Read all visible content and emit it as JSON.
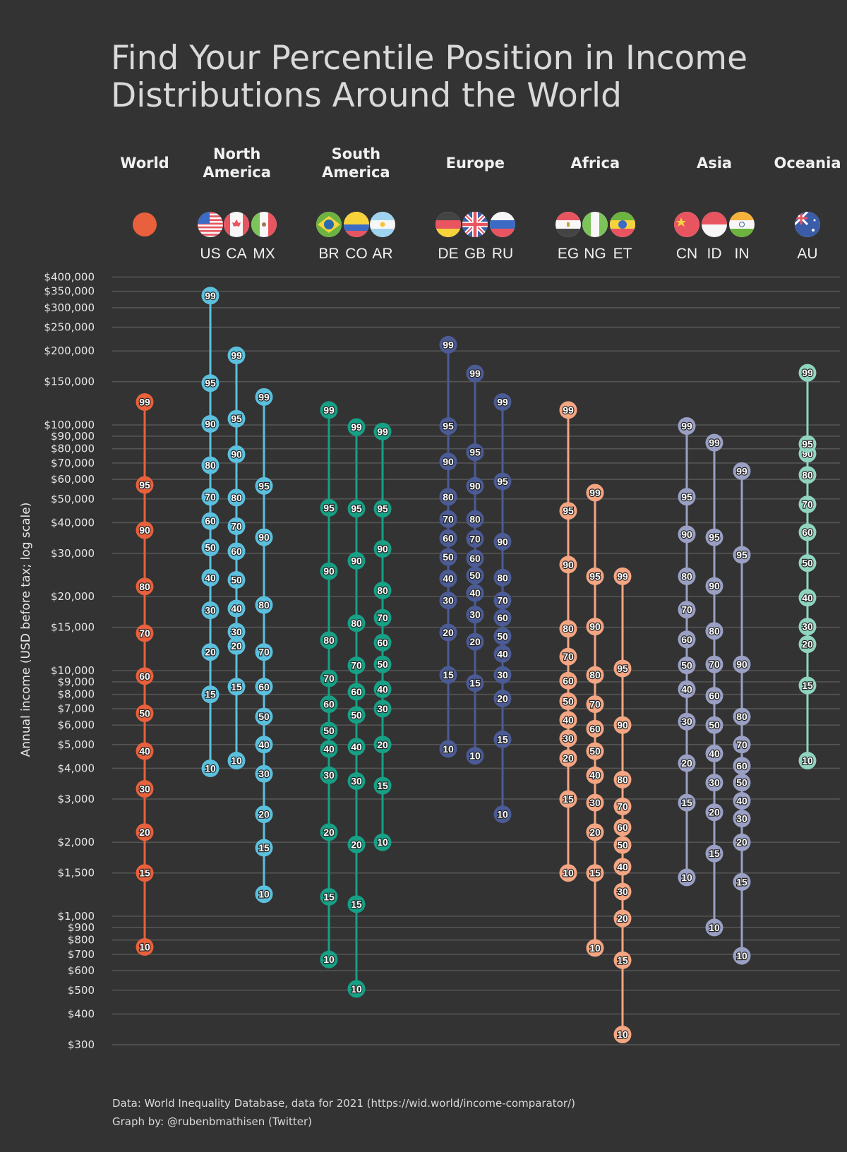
{
  "chart_data": {
    "type": "scatter",
    "title": "Find Your Percentile Position in Income Distributions Around the World",
    "title_lines": [
      "Find Your Percentile Position in Income",
      "Distributions Around the World"
    ],
    "ylabel": "Annual income (USD before tax; log scale)",
    "yscale": "log",
    "ylim": [
      300,
      400000
    ],
    "grid": true,
    "y_ticks": [
      {
        "value": 400000,
        "label": "$400,000"
      },
      {
        "value": 350000,
        "label": "$350,000"
      },
      {
        "value": 300000,
        "label": "$300,000"
      },
      {
        "value": 250000,
        "label": "$250,000"
      },
      {
        "value": 200000,
        "label": "$200,000"
      },
      {
        "value": 150000,
        "label": "$150,000"
      },
      {
        "value": 100000,
        "label": "$100,000"
      },
      {
        "value": 90000,
        "label": "$90,000"
      },
      {
        "value": 80000,
        "label": "$80,000"
      },
      {
        "value": 70000,
        "label": "$70,000"
      },
      {
        "value": 60000,
        "label": "$60,000"
      },
      {
        "value": 50000,
        "label": "$50,000"
      },
      {
        "value": 40000,
        "label": "$40,000"
      },
      {
        "value": 30000,
        "label": "$30,000"
      },
      {
        "value": 20000,
        "label": "$20,000"
      },
      {
        "value": 15000,
        "label": "$15,000"
      },
      {
        "value": 10000,
        "label": "$10,000"
      },
      {
        "value": 9000,
        "label": "$9,000"
      },
      {
        "value": 8000,
        "label": "$8,000"
      },
      {
        "value": 7000,
        "label": "$7,000"
      },
      {
        "value": 6000,
        "label": "$6,000"
      },
      {
        "value": 5000,
        "label": "$5,000"
      },
      {
        "value": 4000,
        "label": "$4,000"
      },
      {
        "value": 3000,
        "label": "$3,000"
      },
      {
        "value": 2000,
        "label": "$2,000"
      },
      {
        "value": 1500,
        "label": "$1,500"
      },
      {
        "value": 1000,
        "label": "$1,000"
      },
      {
        "value": 900,
        "label": "$900"
      },
      {
        "value": 800,
        "label": "$800"
      },
      {
        "value": 700,
        "label": "$700"
      },
      {
        "value": 600,
        "label": "$600"
      },
      {
        "value": 500,
        "label": "$500"
      },
      {
        "value": 400,
        "label": "$400"
      },
      {
        "value": 300,
        "label": "$300"
      }
    ],
    "percentiles": [
      10,
      15,
      20,
      30,
      40,
      50,
      60,
      70,
      80,
      90,
      95,
      99
    ],
    "regions": [
      {
        "name": "World",
        "lines": [
          "World"
        ],
        "color": "#e8603c",
        "series": [
          {
            "code": "",
            "flag": "world-dot",
            "values": [
              750,
              1500,
              2200,
              3300,
              4700,
              6700,
              9500,
              14200,
              22000,
              37300,
              57000,
              124000
            ]
          }
        ]
      },
      {
        "name": "North America",
        "lines": [
          "North",
          "America"
        ],
        "color": "#5bc0de",
        "series": [
          {
            "code": "US",
            "flag": "us-flag",
            "values": [
              4000,
              8000,
              11900,
              17600,
              23900,
              31700,
              40600,
              51000,
              68500,
              101000,
              148000,
              336000
            ]
          },
          {
            "code": "CA",
            "flag": "ca-flag",
            "values": [
              4300,
              8600,
              12600,
              14400,
              17900,
              23400,
              30600,
              38700,
              50600,
              76000,
              106000,
              192000
            ]
          },
          {
            "code": "MX",
            "flag": "mx-flag",
            "values": [
              1230,
              1900,
              2600,
              3800,
              5000,
              6500,
              8600,
              11900,
              18500,
              34900,
              56500,
              130000
            ]
          }
        ]
      },
      {
        "name": "South America",
        "lines": [
          "South",
          "America"
        ],
        "color": "#16a085",
        "series": [
          {
            "code": "BR",
            "flag": "br-flag",
            "values": [
              667,
              1200,
              2200,
              3750,
              4800,
              5700,
              7300,
              9300,
              13300,
              25400,
              46000,
              115000
            ]
          },
          {
            "code": "CO",
            "flag": "co-flag",
            "values": [
              506,
              1120,
              1960,
              3550,
              4900,
              6600,
              8200,
              10500,
              15600,
              28000,
              45600,
              98000
            ]
          },
          {
            "code": "AR",
            "flag": "ar-flag",
            "values": [
              2000,
              3400,
              5000,
              7000,
              8400,
              10600,
              13000,
              16400,
              21200,
              31300,
              45600,
              94000
            ]
          }
        ]
      },
      {
        "name": "Europe",
        "lines": [
          "Europe"
        ],
        "color": "#4b5b95",
        "series": [
          {
            "code": "DE",
            "flag": "de-flag",
            "values": [
              4800,
              9600,
              14300,
              19300,
              23700,
              29000,
              34600,
              41400,
              51000,
              71000,
              99000,
              212000
            ]
          },
          {
            "code": "GB",
            "flag": "gb-flag",
            "values": [
              4500,
              8900,
              13100,
              16900,
              20700,
              24400,
              28600,
              34400,
              41400,
              56500,
              77400,
              162000
            ]
          },
          {
            "code": "RU",
            "flag": "ru-flag",
            "values": [
              2600,
              5250,
              7700,
              9600,
              11700,
              13800,
              16400,
              19300,
              23900,
              33500,
              58900,
              124000
            ]
          }
        ]
      },
      {
        "name": "Africa",
        "lines": [
          "Africa"
        ],
        "color": "#f4a582",
        "series": [
          {
            "code": "EG",
            "flag": "eg-flag",
            "values": [
              1500,
              3000,
              4400,
              5300,
              6300,
              7500,
              9100,
              11400,
              14800,
              27000,
              44700,
              115000
            ]
          },
          {
            "code": "NG",
            "flag": "ng-flag",
            "values": [
              743,
              1500,
              2200,
              2900,
              3750,
              4700,
              5800,
              7300,
              9600,
              15100,
              24200,
              53000
            ]
          },
          {
            "code": "ET",
            "flag": "et-flag",
            "values": [
              330,
              662,
              980,
              1260,
              1590,
              1950,
              2300,
              2800,
              3600,
              6000,
              10200,
              24200
            ]
          }
        ]
      },
      {
        "name": "Asia",
        "lines": [
          "Asia"
        ],
        "color": "#9aa0c4",
        "series": [
          {
            "code": "CN",
            "flag": "cn-flag",
            "values": [
              1440,
              2900,
              4200,
              6200,
              8400,
              10500,
              13400,
              17700,
              24200,
              35900,
              51000,
              99000
            ]
          },
          {
            "code": "ID",
            "flag": "id-flag",
            "values": [
              900,
              1800,
              2650,
              3500,
              4600,
              6000,
              7900,
              10600,
              14500,
              22100,
              34900,
              84700
            ]
          },
          {
            "code": "IN",
            "flag": "in-flag",
            "values": [
              690,
              1380,
              2000,
              2500,
              2950,
              3500,
              4100,
              5000,
              6500,
              10600,
              29600,
              64900
            ]
          }
        ]
      },
      {
        "name": "Oceania",
        "lines": [
          "Oceania"
        ],
        "color": "#8fd4bf",
        "series": [
          {
            "code": "AU",
            "flag": "au-flag",
            "values": [
              4300,
              8700,
              12800,
              15100,
              19800,
              27400,
              36600,
              47500,
              62600,
              76400,
              83600,
              163000
            ]
          }
        ]
      }
    ]
  },
  "footer": {
    "source": "Data: World Inequality Database, data for 2021 (https://wid.world/income-comparator/)",
    "credit": "Graph by: @rubenbmathisen (Twitter)"
  }
}
